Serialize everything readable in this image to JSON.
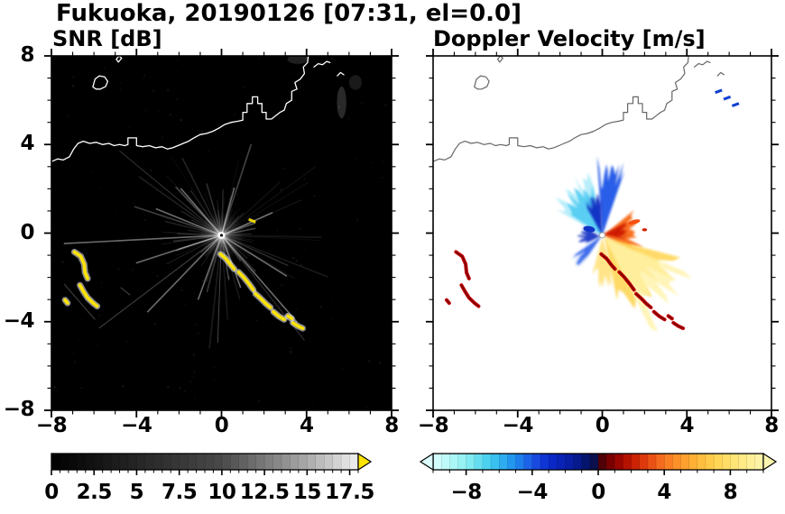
{
  "title": "Fukuoka, 20190126 [07:31, el=0.0]",
  "chart_data": [
    {
      "type": "heatmap",
      "id": "snr",
      "title": "SNR [dB]",
      "xlim": [
        -8,
        8
      ],
      "ylim": [
        -8,
        8
      ],
      "xticks": [
        -8,
        -4,
        0,
        4,
        8
      ],
      "yticks": [
        -8,
        -4,
        0,
        4,
        8
      ],
      "minor_tick_step": 1,
      "background": "#000000",
      "colorbar": {
        "range": [
          0,
          18
        ],
        "tick_labels": [
          0,
          2.5,
          5,
          7.5,
          10,
          12.5,
          15,
          17.5
        ],
        "minor_tick_step": 0.5,
        "seg_step": 0.5,
        "gradient": [
          [
            0,
            "#000000"
          ],
          [
            10,
            "#4a4a4a"
          ],
          [
            15,
            "#aaaaaa"
          ],
          [
            18,
            "#f0f0f0"
          ]
        ],
        "over_arrow_color": "#ffe400"
      },
      "features": {
        "center": [
          0,
          -0.1
        ],
        "radial_streaks": {
          "count": 72,
          "seed": 11,
          "min_len": 1.2,
          "max_len": 8.2,
          "bright": [
            [
              183,
              7.4
            ],
            [
              198,
              4.2
            ],
            [
              226,
              5.0
            ],
            [
              250,
              3.2
            ],
            [
              -49,
              5.4
            ],
            [
              -32,
              3.6
            ],
            [
              -70,
              2.6
            ],
            [
              24,
              2.6
            ],
            [
              75,
              2.3
            ],
            [
              131,
              2.9
            ],
            [
              158,
              3.3
            ]
          ]
        },
        "noise_dots": 180,
        "ghost_echoes": [
          [
            5.65,
            5.9,
            0.22,
            0.75,
            0.16
          ],
          [
            6.3,
            6.8,
            0.3,
            0.35,
            0.1
          ],
          [
            3.6,
            7.85,
            0.5,
            0.22,
            0.12
          ]
        ],
        "specks": [
          [
            [
              1.28,
              0.62
            ],
            [
              1.6,
              0.5
            ]
          ]
        ],
        "faint_lines": [
          [
            [
              -7.4,
              -2.3
            ],
            [
              -5.95,
              -3.9
            ]
          ],
          [
            [
              -4.75,
              -2.45
            ],
            [
              -4.3,
              -2.8
            ]
          ]
        ],
        "clutter_color": "#ffe400",
        "clutter_glow": "#ffffff"
      }
    },
    {
      "type": "heatmap",
      "id": "doppler",
      "title": "Doppler Velocity [m/s]",
      "xlim": [
        -8,
        8
      ],
      "ylim": [
        -8,
        8
      ],
      "xticks": [
        -8,
        -4,
        0,
        4,
        8
      ],
      "yticks": [
        -8,
        -4,
        0,
        4,
        8
      ],
      "minor_tick_step": 1,
      "background": "#ffffff",
      "colorbar": {
        "range": [
          -10,
          10
        ],
        "tick_labels": [
          -8,
          -4,
          0,
          4,
          8
        ],
        "minor_tick_step": 1,
        "seg_step": 0.5,
        "gradient": [
          [
            -10,
            "#dcffff"
          ],
          [
            -8,
            "#8ef0f2"
          ],
          [
            -6.5,
            "#3eccf0"
          ],
          [
            -5,
            "#1e8cee"
          ],
          [
            -4,
            "#1c55e6"
          ],
          [
            -3,
            "#0a2ace"
          ],
          [
            -1.5,
            "#071c9c"
          ],
          [
            -0.3,
            "#041052"
          ],
          [
            0.3,
            "#570000"
          ],
          [
            1,
            "#8d0000"
          ],
          [
            2,
            "#c21800"
          ],
          [
            3,
            "#e64410"
          ],
          [
            4,
            "#f87722"
          ],
          [
            5.5,
            "#ffa930"
          ],
          [
            7,
            "#ffd24e"
          ],
          [
            8.5,
            "#ffe87e"
          ],
          [
            10,
            "#fcf5af"
          ]
        ],
        "under_arrow_color": "#dcffff",
        "over_arrow_color": "#fcf5af"
      },
      "features": {
        "center": [
          0,
          -0.1
        ],
        "lobes": [
          {
            "cx": 0,
            "cy": -0.1,
            "a0": 100,
            "a1": 152,
            "r": 2.5,
            "color": "#9fe8f8",
            "op": 0.75
          },
          {
            "cx": 0,
            "cy": -0.1,
            "a0": 102,
            "a1": 148,
            "r": 2.0,
            "color": "#55ccf2",
            "op": 0.95
          },
          {
            "cx": 0,
            "cy": -0.1,
            "a0": 70,
            "a1": 94,
            "r": 2.8,
            "color": "#1d55e8",
            "op": 0.95
          },
          {
            "cx": 0,
            "cy": -0.1,
            "a0": 92,
            "a1": 120,
            "r": 1.6,
            "color": "#0a2cc2",
            "op": 0.95
          },
          {
            "cx": -0.1,
            "cy": -0.15,
            "a0": 150,
            "a1": 205,
            "r": 0.85,
            "color": "#0a2cc2",
            "op": 0.9
          },
          {
            "cx": 0,
            "cy": -0.1,
            "a0": 214,
            "a1": 234,
            "r": 1.5,
            "color": "#1d55e8",
            "op": 0.85
          },
          {
            "cx": 0.05,
            "cy": -0.1,
            "a0": -28,
            "a1": 38,
            "r": 1.55,
            "color": "#f86a18",
            "op": 0.95
          },
          {
            "cx": 0.05,
            "cy": -0.05,
            "a0": -12,
            "a1": 26,
            "r": 0.95,
            "color": "#cc1800",
            "op": 0.95
          },
          {
            "cx": 0.1,
            "cy": -0.2,
            "a0": -78,
            "a1": -14,
            "r": 2.9,
            "color": "#ffd658",
            "op": 0.9
          },
          {
            "cx": 0.1,
            "cy": -0.2,
            "a0": -62,
            "a1": -22,
            "r": 3.9,
            "color": "#fff2a8",
            "op": 0.8
          },
          {
            "cx": 0,
            "cy": -0.2,
            "a0": -106,
            "a1": -72,
            "r": 1.9,
            "color": "#ffdf74",
            "op": 0.85
          }
        ],
        "spots": [
          {
            "x": 1.5,
            "y": 0.5,
            "rx": 0.3,
            "ry": 0.1,
            "rot": -15,
            "color": "#f85010"
          },
          {
            "x": 2.0,
            "y": 0.15,
            "rx": 0.12,
            "ry": 0.07,
            "rot": 0,
            "color": "#d42000"
          },
          {
            "x": -0.62,
            "y": 0.18,
            "rx": 0.28,
            "ry": 0.14,
            "rot": 10,
            "color": "#1233c8"
          }
        ],
        "blue_specks": [
          [
            5.5,
            6.4
          ],
          [
            5.9,
            6.1
          ],
          [
            6.3,
            5.8
          ]
        ],
        "clutter_color": "#c40000",
        "clutter_core": "#7c0000"
      }
    }
  ],
  "clutter_arcs": [
    [
      [
        -6.92,
        -0.85
      ],
      [
        -6.62,
        -1.05
      ],
      [
        -6.46,
        -1.4
      ],
      [
        -6.42,
        -1.78
      ],
      [
        -6.3,
        -2.05
      ]
    ],
    [
      [
        -6.66,
        -2.35
      ],
      [
        -6.5,
        -2.62
      ],
      [
        -6.3,
        -2.92
      ],
      [
        -6.04,
        -3.16
      ],
      [
        -5.85,
        -3.3
      ]
    ],
    [
      [
        -7.36,
        -3.02
      ],
      [
        -7.24,
        -3.16
      ]
    ],
    [
      [
        -0.05,
        -0.95
      ],
      [
        0.2,
        -1.15
      ],
      [
        0.44,
        -1.45
      ],
      [
        0.6,
        -1.62
      ]
    ],
    [
      [
        0.8,
        -1.76
      ],
      [
        1.05,
        -2.0
      ],
      [
        1.3,
        -2.3
      ],
      [
        1.5,
        -2.56
      ]
    ],
    [
      [
        1.6,
        -2.74
      ],
      [
        1.85,
        -2.96
      ],
      [
        2.1,
        -3.2
      ],
      [
        2.3,
        -3.36
      ]
    ],
    [
      [
        2.44,
        -3.55
      ],
      [
        2.7,
        -3.76
      ],
      [
        2.95,
        -3.9
      ]
    ],
    [
      [
        3.12,
        -3.74
      ],
      [
        3.3,
        -3.86
      ]
    ],
    [
      [
        3.36,
        -4.05
      ],
      [
        3.6,
        -4.2
      ],
      [
        3.82,
        -4.3
      ]
    ]
  ],
  "geography": {
    "coastline": [
      [
        -8.2,
        3.15
      ],
      [
        -7.7,
        3.35
      ],
      [
        -7.45,
        3.3
      ],
      [
        -7.15,
        3.45
      ],
      [
        -6.95,
        3.8
      ],
      [
        -6.75,
        4.05
      ],
      [
        -6.5,
        4.15
      ],
      [
        -6.2,
        4.05
      ],
      [
        -5.9,
        4.1
      ],
      [
        -5.6,
        4.0
      ],
      [
        -5.3,
        4.05
      ],
      [
        -5.05,
        3.95
      ],
      [
        -4.8,
        4.0
      ],
      [
        -4.55,
        3.95
      ],
      [
        -4.4,
        4.0
      ],
      [
        -4.4,
        4.3
      ],
      [
        -4.0,
        4.3
      ],
      [
        -4.0,
        3.95
      ],
      [
        -3.7,
        3.9
      ],
      [
        -3.4,
        3.95
      ],
      [
        -3.1,
        3.85
      ],
      [
        -2.8,
        3.9
      ],
      [
        -2.55,
        3.8
      ],
      [
        -2.3,
        3.85
      ],
      [
        -2.05,
        3.95
      ],
      [
        -1.8,
        4.05
      ],
      [
        -1.55,
        4.15
      ],
      [
        -1.3,
        4.3
      ],
      [
        -1.0,
        4.45
      ],
      [
        -0.7,
        4.5
      ],
      [
        -0.4,
        4.6
      ],
      [
        -0.1,
        4.75
      ],
      [
        0.15,
        4.9
      ],
      [
        0.45,
        5.0
      ],
      [
        0.75,
        5.05
      ],
      [
        1.0,
        5.1
      ],
      [
        1.0,
        5.45
      ],
      [
        1.2,
        5.45
      ],
      [
        1.2,
        5.85
      ],
      [
        1.45,
        5.85
      ],
      [
        1.45,
        6.15
      ],
      [
        1.7,
        6.15
      ],
      [
        1.7,
        5.85
      ],
      [
        1.9,
        5.85
      ],
      [
        1.9,
        5.45
      ],
      [
        2.1,
        5.45
      ],
      [
        2.1,
        5.15
      ],
      [
        2.35,
        5.15
      ],
      [
        2.55,
        5.3
      ],
      [
        2.75,
        5.45
      ],
      [
        2.95,
        5.55
      ],
      [
        3.05,
        5.85
      ],
      [
        3.3,
        6.0
      ],
      [
        3.3,
        6.4
      ],
      [
        3.55,
        6.5
      ],
      [
        3.45,
        6.8
      ],
      [
        3.7,
        6.95
      ],
      [
        3.9,
        7.2
      ],
      [
        3.85,
        7.5
      ],
      [
        4.05,
        7.7
      ],
      [
        4.1,
        8.2
      ]
    ],
    "islands": [
      [
        [
          -6.05,
          6.6
        ],
        [
          -5.95,
          6.95
        ],
        [
          -5.75,
          7.1
        ],
        [
          -5.5,
          7.05
        ],
        [
          -5.35,
          6.85
        ],
        [
          -5.45,
          6.62
        ],
        [
          -5.7,
          6.5
        ],
        [
          -5.9,
          6.5
        ]
      ],
      [
        [
          -4.95,
          7.85
        ],
        [
          -4.82,
          8.0
        ],
        [
          -4.7,
          7.9
        ],
        [
          -4.85,
          7.72
        ]
      ]
    ],
    "structures": [
      [
        [
          4.35,
          7.5
        ],
        [
          4.55,
          7.65
        ],
        [
          4.75,
          7.6
        ],
        [
          4.95,
          7.75
        ],
        [
          5.1,
          7.7
        ]
      ],
      [
        [
          5.45,
          7.1
        ],
        [
          5.6,
          7.25
        ],
        [
          5.75,
          7.15
        ]
      ]
    ]
  }
}
